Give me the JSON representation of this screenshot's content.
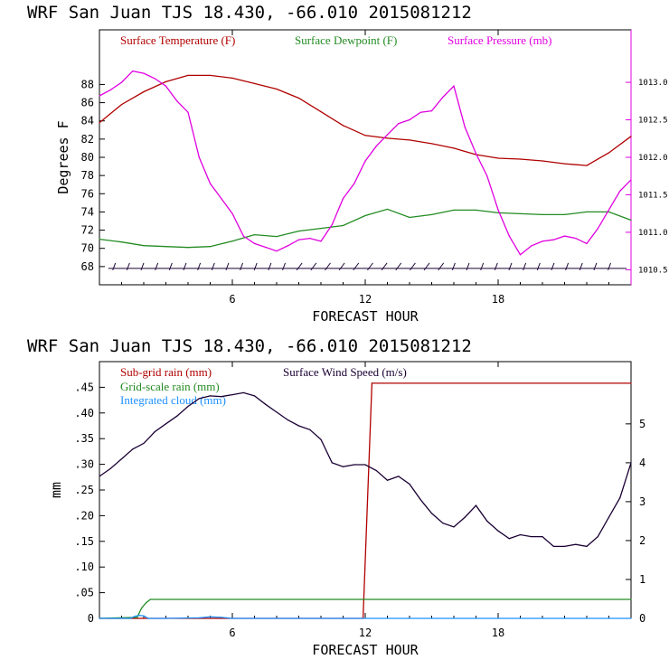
{
  "chart_data": [
    {
      "type": "line",
      "title": "WRF  San Juan TJS  18.430, -66.010  2015081212",
      "xlabel": "FORECAST HOUR",
      "ylabel": "Degrees F",
      "xlim": [
        0,
        24
      ],
      "ylim": [
        66,
        94
      ],
      "y2lim": [
        1010.3,
        1013.7
      ],
      "x_ticks": [
        6,
        12,
        18
      ],
      "x_tick_labels": [
        "6",
        "12",
        "18"
      ],
      "y_ticks": [
        68,
        70,
        72,
        74,
        76,
        78,
        80,
        82,
        84,
        86,
        88
      ],
      "y_tick_labels": [
        "68",
        "70",
        "72",
        "74",
        "76",
        "78",
        "80",
        "82",
        "84",
        "86",
        "88"
      ],
      "y2_ticks": [
        1010.5,
        1011.0,
        1011.5,
        1012.0,
        1012.5,
        1013.0
      ],
      "y2_tick_labels": [
        "1010.5",
        "1011.0",
        "1011.5",
        "1012.0",
        "1012.5",
        "1013.0"
      ],
      "colors": {
        "temperature": "#b00000",
        "dewpoint": "#228b22",
        "pressure": "#e000e0",
        "wind": "#1a0033"
      },
      "series": [
        {
          "name": "Surface Temperature (F)",
          "axis": "left",
          "x": [
            0,
            1,
            2,
            3,
            4,
            5,
            6,
            7,
            8,
            9,
            10,
            11,
            12,
            13,
            14,
            15,
            16,
            17,
            18,
            19,
            20,
            21,
            22,
            23,
            24
          ],
          "y": [
            83.8,
            85.8,
            87.2,
            88.3,
            89.0,
            89.0,
            88.7,
            88.1,
            87.5,
            86.5,
            85.0,
            83.5,
            82.4,
            82.1,
            81.9,
            81.5,
            81.0,
            80.3,
            79.9,
            79.8,
            79.6,
            79.3,
            79.1,
            80.5,
            82.3
          ]
        },
        {
          "name": "Surface Dewpoint (F)",
          "axis": "left",
          "x": [
            0,
            1,
            2,
            3,
            4,
            5,
            6,
            7,
            8,
            9,
            10,
            11,
            12,
            13,
            14,
            15,
            16,
            17,
            18,
            19,
            20,
            21,
            22,
            23,
            24
          ],
          "y": [
            71.0,
            70.7,
            70.3,
            70.2,
            70.1,
            70.2,
            70.8,
            71.5,
            71.3,
            71.9,
            72.2,
            72.5,
            73.6,
            74.3,
            73.4,
            73.7,
            74.2,
            74.2,
            73.9,
            73.8,
            73.7,
            73.7,
            74.0,
            74.0,
            73.1
          ]
        },
        {
          "name": "Surface Pressure (mb)",
          "axis": "right",
          "x": [
            0,
            0.5,
            1,
            1.5,
            2,
            2.5,
            3,
            3.5,
            4,
            4.5,
            5,
            5.5,
            6,
            6.5,
            7,
            7.5,
            8,
            8.5,
            9,
            9.5,
            10,
            10.5,
            11,
            11.5,
            12,
            12.5,
            13,
            13.5,
            14,
            14.5,
            15,
            15.5,
            16,
            16.5,
            17,
            17.5,
            18,
            18.5,
            19,
            19.5,
            20,
            20.5,
            21,
            21.5,
            22,
            22.5,
            23,
            23.5,
            24
          ],
          "y": [
            1012.82,
            1012.9,
            1013.0,
            1013.15,
            1013.12,
            1013.05,
            1012.95,
            1012.75,
            1012.6,
            1012.0,
            1011.65,
            1011.45,
            1011.25,
            1010.95,
            1010.85,
            1010.8,
            1010.75,
            1010.82,
            1010.9,
            1010.92,
            1010.88,
            1011.1,
            1011.45,
            1011.65,
            1011.95,
            1012.15,
            1012.3,
            1012.45,
            1012.5,
            1012.6,
            1012.62,
            1012.8,
            1012.95,
            1012.4,
            1012.05,
            1011.75,
            1011.3,
            1010.95,
            1010.7,
            1010.82,
            1010.88,
            1010.9,
            1010.95,
            1010.92,
            1010.85,
            1011.05,
            1011.3,
            1011.55,
            1011.7
          ]
        }
      ],
      "wind_barbs": {
        "level_f": 67.8,
        "count": 36,
        "color": "#1a0033"
      }
    },
    {
      "type": "line",
      "title": "WRF  San Juan TJS  18.430, -66.010  2015081212",
      "xlabel": "FORECAST HOUR",
      "ylabel": "mm",
      "xlim": [
        0,
        24
      ],
      "ylim": [
        0,
        0.5
      ],
      "y2lim": [
        0,
        6.6
      ],
      "x_ticks": [
        6,
        12,
        18
      ],
      "x_tick_labels": [
        "6",
        "12",
        "18"
      ],
      "y_ticks": [
        0,
        0.05,
        0.1,
        0.15,
        0.2,
        0.25,
        0.3,
        0.35,
        0.4,
        0.45
      ],
      "y_tick_labels": [
        "0",
        ".05",
        ".10",
        ".15",
        ".20",
        ".25",
        ".30",
        ".35",
        ".40",
        ".45"
      ],
      "y2_ticks": [
        0,
        1,
        2,
        3,
        4,
        5
      ],
      "y2_tick_labels": [
        "0",
        "1",
        "2",
        "3",
        "4",
        "5"
      ],
      "series": [
        {
          "name": "Sub-grid rain (mm)",
          "axis": "left",
          "color": "#b00000",
          "x": [
            0,
            11.9,
            12.3,
            24
          ],
          "y": [
            0,
            0,
            0.458,
            0.458
          ]
        },
        {
          "name": "Grid-scale rain (mm)",
          "axis": "left",
          "color": "#228b22",
          "x": [
            0,
            1.7,
            1.9,
            2.1,
            2.3,
            24
          ],
          "y": [
            0,
            0.002,
            0.02,
            0.03,
            0.037,
            0.037
          ]
        },
        {
          "name": "Integrated cloud (mm)",
          "axis": "left",
          "color": "#1e90ff",
          "x": [
            0,
            1.4,
            1.6,
            1.8,
            2.0,
            2.2,
            3.0,
            4.5,
            5.0,
            5.5,
            6.0,
            24
          ],
          "y": [
            0,
            0,
            0.004,
            0.006,
            0.005,
            0,
            0,
            0.001,
            0.003,
            0.002,
            0,
            0
          ]
        },
        {
          "name": "Surface Wind Speed (m/s)",
          "axis": "right",
          "color": "#1a0033",
          "x": [
            0,
            0.5,
            1,
            1.5,
            2,
            2.5,
            3,
            3.5,
            4,
            4.5,
            5,
            5.5,
            6,
            6.5,
            7,
            7.5,
            8,
            8.5,
            9,
            9.5,
            10,
            10.5,
            11,
            11.5,
            12,
            12.5,
            13,
            13.5,
            14,
            14.5,
            15,
            15.5,
            16,
            16.5,
            17,
            17.5,
            18,
            18.5,
            19,
            19.5,
            20,
            20.5,
            21,
            21.5,
            22,
            22.5,
            23,
            23.5,
            24
          ],
          "y": [
            3.65,
            3.85,
            4.1,
            4.35,
            4.5,
            4.8,
            5.0,
            5.2,
            5.45,
            5.65,
            5.72,
            5.7,
            5.75,
            5.8,
            5.72,
            5.5,
            5.3,
            5.1,
            4.95,
            4.85,
            4.6,
            4.0,
            3.9,
            3.95,
            3.95,
            3.8,
            3.55,
            3.65,
            3.45,
            3.05,
            2.7,
            2.45,
            2.35,
            2.6,
            2.9,
            2.5,
            2.25,
            2.05,
            2.15,
            2.1,
            2.1,
            1.85,
            1.85,
            1.9,
            1.85,
            2.1,
            2.6,
            3.1,
            4.0
          ]
        }
      ]
    }
  ]
}
